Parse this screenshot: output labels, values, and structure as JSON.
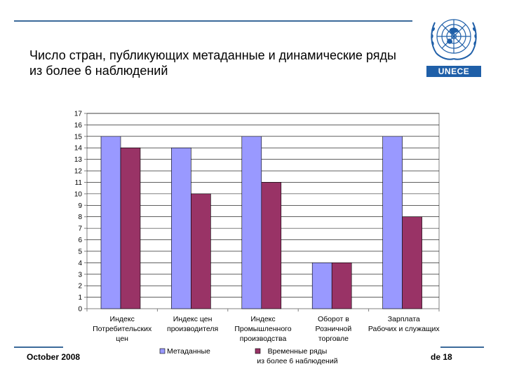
{
  "title_line1": "Число стран, публикующих метаданные и динамические ряды",
  "title_line2": "из более 6 наблюдений",
  "logo": {
    "text": "UNECE",
    "icon": "un-emblem-icon"
  },
  "footer": {
    "date": "October 2008",
    "slide": "de 18"
  },
  "colors": {
    "rule": "#3b6a9a",
    "series1": "#9999ff",
    "series2": "#993366",
    "logo": "#1f5fa8"
  },
  "chart_data": {
    "type": "bar",
    "categories": [
      [
        "Индекс",
        "Потребительских",
        "цен"
      ],
      [
        "Индекс цен",
        "производителя"
      ],
      [
        "Индекс",
        "Промышленного",
        "производства"
      ],
      [
        "Оборот в",
        "Розничной",
        "торговле"
      ],
      [
        "Зарплата",
        "Рабочих и служащих"
      ]
    ],
    "series": [
      {
        "name": "Метаданные",
        "values": [
          15,
          14,
          15,
          4,
          15
        ]
      },
      {
        "name": "Временные ряды из более 6 наблюдений",
        "values": [
          14,
          10,
          11,
          4,
          8
        ]
      }
    ],
    "legend_series2_lines": [
      "Временные ряды",
      "из более 6 наблюдений"
    ],
    "yticks": [
      "0",
      "1",
      "2",
      "3",
      "4",
      "5",
      "6",
      "7",
      "8",
      "9",
      "10",
      "11",
      "12",
      "13",
      "14",
      "15",
      "16",
      "17"
    ],
    "ylim": [
      0,
      17
    ],
    "grid": true,
    "legend": "bottom"
  }
}
